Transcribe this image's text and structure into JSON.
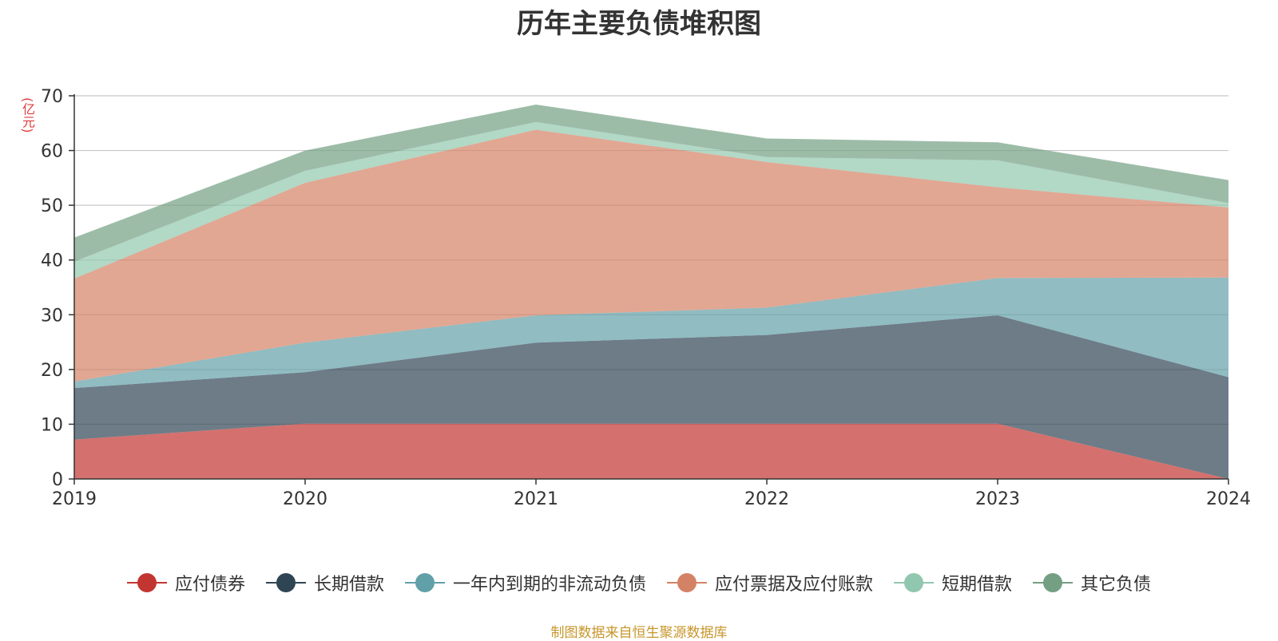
{
  "chart_data": {
    "type": "area",
    "stacked": true,
    "title": "历年主要负债堆积图",
    "ylabel": "(亿元)",
    "xlabel": "",
    "x": [
      "2019",
      "2020",
      "2021",
      "2022",
      "2023",
      "2024"
    ],
    "ylim": [
      0,
      70
    ],
    "yticks": [
      0,
      10,
      20,
      30,
      40,
      50,
      60,
      70
    ],
    "grid": true,
    "legend_position": "bottom",
    "series": [
      {
        "name": "应付债券",
        "color": "#c23531",
        "values": [
          7.2,
          10.1,
          10.1,
          10.1,
          10.1,
          0
        ]
      },
      {
        "name": "长期借款",
        "color": "#2f4554",
        "values": [
          9.4,
          9.4,
          14.8,
          16.2,
          19.8,
          18.6
        ]
      },
      {
        "name": "一年内到期的非流动负债",
        "color": "#61a0a8",
        "values": [
          1.2,
          5.4,
          5.0,
          5.0,
          6.8,
          18.2
        ]
      },
      {
        "name": "应付票据及应付账款",
        "color": "#d48265",
        "values": [
          18.8,
          29.2,
          33.9,
          26.6,
          16.6,
          12.8
        ]
      },
      {
        "name": "短期借款",
        "color": "#91c7ae",
        "values": [
          3.1,
          2.2,
          1.4,
          0.9,
          4.9,
          0.8
        ]
      },
      {
        "name": "其它负债",
        "color": "#749f83",
        "values": [
          4.4,
          3.7,
          3.2,
          3.4,
          3.3,
          4.2
        ]
      }
    ]
  },
  "source_note": "制图数据来自恒生聚源数据库"
}
